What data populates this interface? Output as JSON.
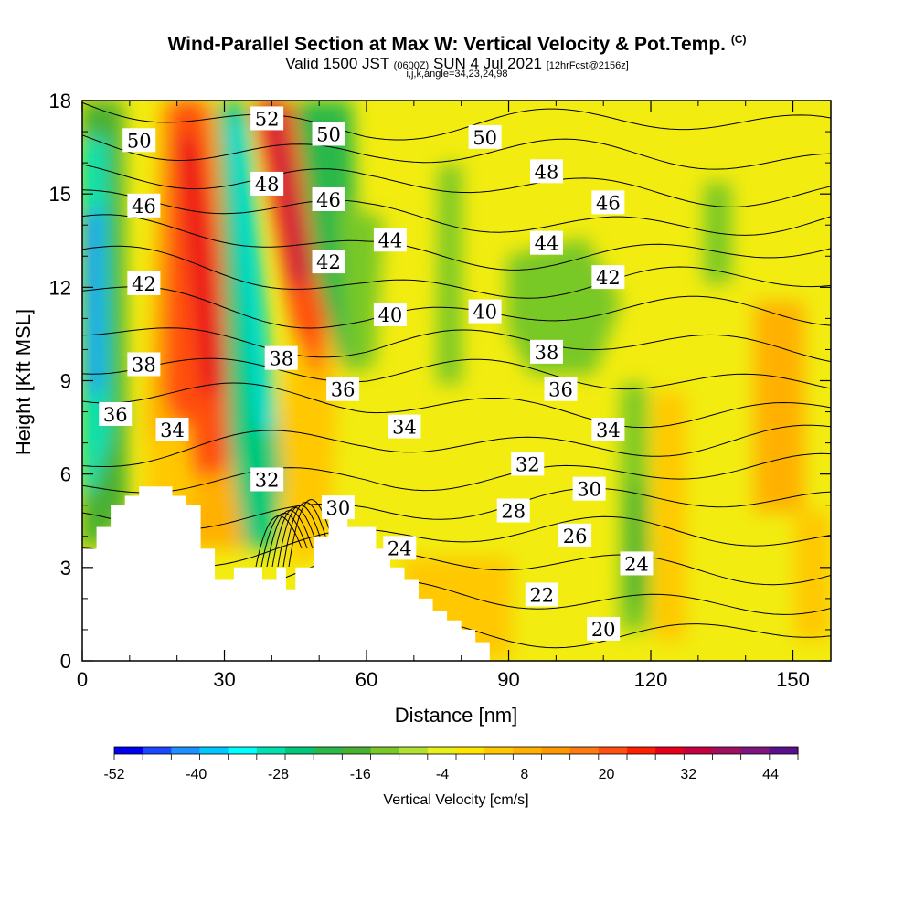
{
  "title": "Wind-Parallel Section at Max W: Vertical Velocity & Pot.Temp.",
  "copyright": "(C)",
  "subtitle_main": "Valid 1500 JST",
  "subtitle_utc": "(0600Z)",
  "subtitle_date": "SUN 4 Jul 2021",
  "subtitle_fcst": "[12hrFcst@2156z]",
  "subtitle_idx": "i,j,k,angle=34,23,24,98",
  "chart_data": {
    "type": "heatmap",
    "xlabel": "Distance [nm]",
    "ylabel": "Height [Kft MSL]",
    "xlim": [
      0,
      158
    ],
    "ylim": [
      0,
      18
    ],
    "xticks": [
      0,
      30,
      60,
      90,
      120,
      150
    ],
    "yticks": [
      0,
      3,
      6,
      9,
      12,
      15,
      18
    ],
    "colorbar": {
      "label": "Vertical Velocity [cm/s]",
      "min": -52,
      "max": 48,
      "tick_values": [
        -52,
        -40,
        -28,
        -16,
        -4,
        8,
        20,
        32,
        44
      ],
      "colors": [
        "#0000f0",
        "#1a48ff",
        "#1e90ff",
        "#00c8ff",
        "#00ffff",
        "#00e0b0",
        "#00c87a",
        "#2ab84a",
        "#48b030",
        "#78c828",
        "#b0e030",
        "#e8f018",
        "#ffe600",
        "#ffc800",
        "#ffb000",
        "#ff9800",
        "#ff7a10",
        "#ff5010",
        "#ff2000",
        "#e8001a",
        "#c40040",
        "#a01060",
        "#7e1480",
        "#5a0f8c"
      ]
    },
    "terrain_kft": [
      [
        0,
        3.6
      ],
      [
        3,
        3.6
      ],
      [
        3,
        4.3
      ],
      [
        6,
        4.3
      ],
      [
        6,
        5
      ],
      [
        9,
        5
      ],
      [
        9,
        5.3
      ],
      [
        12,
        5.3
      ],
      [
        12,
        5.6
      ],
      [
        19,
        5.6
      ],
      [
        19,
        5.3
      ],
      [
        22,
        5.3
      ],
      [
        22,
        5
      ],
      [
        25,
        5
      ],
      [
        25,
        3.6
      ],
      [
        28,
        3.6
      ],
      [
        28,
        2.6
      ],
      [
        32,
        2.6
      ],
      [
        32,
        3
      ],
      [
        38,
        3
      ],
      [
        38,
        2.6
      ],
      [
        41,
        2.6
      ],
      [
        41,
        3
      ],
      [
        43,
        3
      ],
      [
        43,
        2.3
      ],
      [
        45,
        2.3
      ],
      [
        45,
        3
      ],
      [
        49,
        3
      ],
      [
        49,
        4
      ],
      [
        52,
        4
      ],
      [
        52,
        4.6
      ],
      [
        56,
        4.6
      ],
      [
        56,
        4.3
      ],
      [
        62,
        4.3
      ],
      [
        62,
        3.6
      ],
      [
        65,
        3.6
      ],
      [
        65,
        3
      ],
      [
        68,
        3
      ],
      [
        68,
        2.6
      ],
      [
        71,
        2.6
      ],
      [
        71,
        2
      ],
      [
        74,
        2
      ],
      [
        74,
        1.6
      ],
      [
        77,
        1.6
      ],
      [
        77,
        1.3
      ],
      [
        80,
        1.3
      ],
      [
        80,
        1
      ],
      [
        83,
        1
      ],
      [
        83,
        0.6
      ],
      [
        86,
        0.6
      ],
      [
        86,
        0
      ],
      [
        0,
        0
      ]
    ],
    "theta_contours": [
      "20",
      "22",
      "24",
      "26",
      "28",
      "30",
      "32",
      "34",
      "36",
      "38",
      "40",
      "42",
      "44",
      "46",
      "48",
      "50",
      "52"
    ],
    "contour_labels": [
      {
        "text": "50",
        "x": 12,
        "y": 16.7
      },
      {
        "text": "46",
        "x": 13,
        "y": 14.6
      },
      {
        "text": "42",
        "x": 13,
        "y": 12.1
      },
      {
        "text": "38",
        "x": 13,
        "y": 9.5
      },
      {
        "text": "36",
        "x": 7,
        "y": 7.9
      },
      {
        "text": "34",
        "x": 19,
        "y": 7.4
      },
      {
        "text": "52",
        "x": 39,
        "y": 17.4
      },
      {
        "text": "48",
        "x": 39,
        "y": 15.3
      },
      {
        "text": "50",
        "x": 52,
        "y": 16.9
      },
      {
        "text": "46",
        "x": 52,
        "y": 14.8
      },
      {
        "text": "42",
        "x": 52,
        "y": 12.8
      },
      {
        "text": "44",
        "x": 65,
        "y": 13.5
      },
      {
        "text": "40",
        "x": 65,
        "y": 11.1
      },
      {
        "text": "38",
        "x": 42,
        "y": 9.7
      },
      {
        "text": "36",
        "x": 55,
        "y": 8.7
      },
      {
        "text": "34",
        "x": 68,
        "y": 7.5
      },
      {
        "text": "32",
        "x": 39,
        "y": 5.8
      },
      {
        "text": "30",
        "x": 54,
        "y": 4.9
      },
      {
        "text": "24",
        "x": 67,
        "y": 3.6
      },
      {
        "text": "50",
        "x": 85,
        "y": 16.8
      },
      {
        "text": "48",
        "x": 98,
        "y": 15.7
      },
      {
        "text": "46",
        "x": 111,
        "y": 14.7
      },
      {
        "text": "44",
        "x": 98,
        "y": 13.4
      },
      {
        "text": "42",
        "x": 111,
        "y": 12.3
      },
      {
        "text": "40",
        "x": 85,
        "y": 11.2
      },
      {
        "text": "38",
        "x": 98,
        "y": 9.9
      },
      {
        "text": "36",
        "x": 101,
        "y": 8.7
      },
      {
        "text": "34",
        "x": 111,
        "y": 7.4
      },
      {
        "text": "32",
        "x": 94,
        "y": 6.3
      },
      {
        "text": "30",
        "x": 107,
        "y": 5.5
      },
      {
        "text": "28",
        "x": 91,
        "y": 4.8
      },
      {
        "text": "26",
        "x": 104,
        "y": 4
      },
      {
        "text": "24",
        "x": 117,
        "y": 3.1
      },
      {
        "text": "22",
        "x": 97,
        "y": 2.1
      },
      {
        "text": "20",
        "x": 110,
        "y": 1
      }
    ]
  }
}
